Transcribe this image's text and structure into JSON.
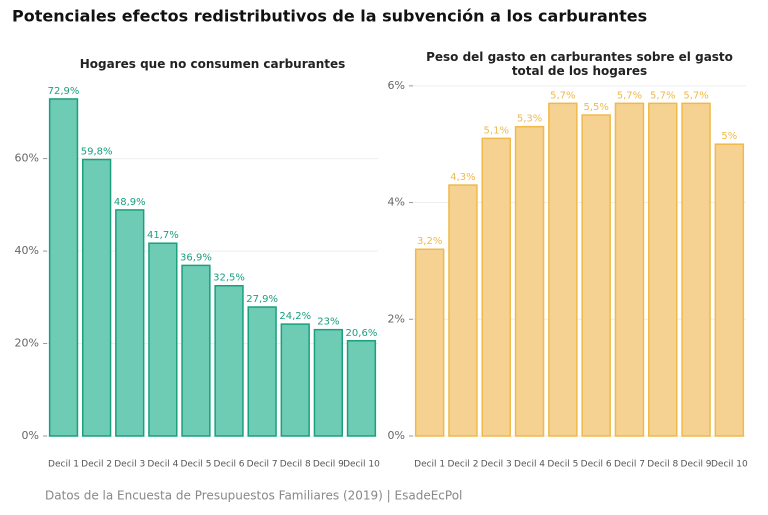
{
  "title": "Potenciales efectos redistributivos de la subvención a los carburantes",
  "caption": "Datos de la Encuesta de Presupuestos Familiares (2019) | EsadeEcPol",
  "chart_data": [
    {
      "type": "bar",
      "title": "Hogares que no consumen carburantes",
      "categories": [
        "Decil 1",
        "Decil 2",
        "Decil 3",
        "Decil 4",
        "Decil 5",
        "Decil 6",
        "Decil 7",
        "Decil 8",
        "Decil 9",
        "Decil 10"
      ],
      "values": [
        72.9,
        59.8,
        48.9,
        41.7,
        36.9,
        32.5,
        27.9,
        24.2,
        23,
        20.6
      ],
      "value_labels": [
        "72,9%",
        "59,8%",
        "48,9%",
        "41,7%",
        "36,9%",
        "32,5%",
        "27,9%",
        "24,2%",
        "23%",
        "20,6%"
      ],
      "color": "#66c9b1",
      "edge_color": "#1aa07f",
      "ylim": [
        0,
        77
      ],
      "yticks": [
        {
          "value": 0,
          "label": "0%"
        },
        {
          "value": 20,
          "label": "20%"
        },
        {
          "value": 40,
          "label": "40%"
        },
        {
          "value": 60,
          "label": "60%"
        }
      ],
      "grid": true
    },
    {
      "type": "bar",
      "title": "Peso del gasto en carburantes sobre el gasto\ntotal de los hogares",
      "categories": [
        "Decil 1",
        "Decil 2",
        "Decil 3",
        "Decil 4",
        "Decil 5",
        "Decil 6",
        "Decil 7",
        "Decil 8",
        "Decil 9",
        "Decil 10"
      ],
      "values": [
        3.2,
        4.3,
        5.1,
        5.3,
        5.7,
        5.5,
        5.7,
        5.7,
        5.7,
        5
      ],
      "value_labels": [
        "3,2%",
        "4,3%",
        "5,1%",
        "5,3%",
        "5,7%",
        "5,5%",
        "5,7%",
        "5,7%",
        "5,7%",
        "5%"
      ],
      "color": "#f5d08c",
      "edge_color": "#f0b94a",
      "ylim": [
        0,
        6.1
      ],
      "yticks": [
        {
          "value": 0,
          "label": "0%"
        },
        {
          "value": 2,
          "label": "2%"
        },
        {
          "value": 4,
          "label": "4%"
        },
        {
          "value": 6,
          "label": "6%"
        }
      ],
      "grid": true
    }
  ]
}
